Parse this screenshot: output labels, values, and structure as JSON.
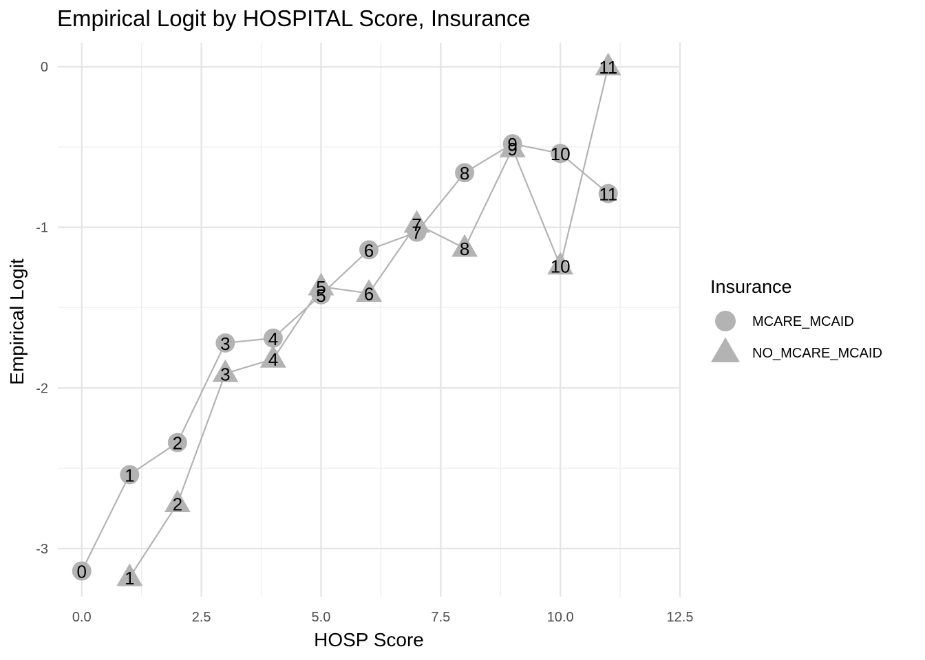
{
  "chart_data": {
    "type": "line",
    "title": "Empirical Logit by HOSPITAL Score, Insurance",
    "xlabel": "HOSP Score",
    "ylabel": "Empirical Logit",
    "xlim": [
      -0.5,
      12.5
    ],
    "ylim": [
      -3.3,
      0.15
    ],
    "x_ticks": [
      0,
      2.5,
      5,
      7.5,
      10,
      12.5
    ],
    "x_tick_labels": [
      "0.0",
      "2.5",
      "5.0",
      "7.5",
      "10.0",
      "12.5"
    ],
    "y_ticks": [
      0,
      -1,
      -2,
      -3
    ],
    "y_tick_labels": [
      "0",
      "-1",
      "-2",
      "-3"
    ],
    "grid": true,
    "legend": {
      "title": "Insurance",
      "placement": "right"
    },
    "marker_color": "#b3b3b3",
    "line_color": "#b3b3b3",
    "series": [
      {
        "name": "MCARE_MCAID",
        "marker": "circle",
        "x": [
          0,
          1,
          2,
          3,
          4,
          5,
          6,
          7,
          8,
          9,
          10,
          11
        ],
        "y": [
          -3.14,
          -2.54,
          -2.34,
          -1.72,
          -1.69,
          -1.42,
          -1.14,
          -1.03,
          -0.66,
          -0.48,
          -0.54,
          -0.79
        ],
        "labels": [
          "0",
          "1",
          "2",
          "3",
          "4",
          "5",
          "6",
          "7",
          "8",
          "9",
          "10",
          "11"
        ]
      },
      {
        "name": "NO_MCARE_MCAID",
        "marker": "triangle",
        "x": [
          1,
          2,
          3,
          4,
          5,
          6,
          7,
          8,
          9,
          10,
          11
        ],
        "y": [
          -3.18,
          -2.72,
          -1.91,
          -1.82,
          -1.37,
          -1.41,
          -0.98,
          -1.13,
          -0.51,
          -1.24,
          0.0
        ],
        "labels": [
          "1",
          "2",
          "3",
          "4",
          "5",
          "6",
          "7",
          "8",
          "9",
          "10",
          "11"
        ]
      }
    ]
  }
}
